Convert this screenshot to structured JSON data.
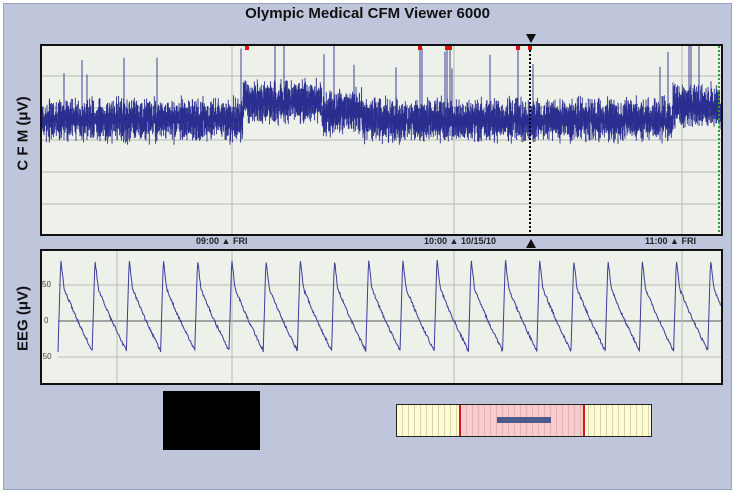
{
  "app": {
    "title": "Olympic Medical CFM Viewer 6000"
  },
  "cfm": {
    "ylabel": "C F M (μV)",
    "time_labels": [
      {
        "time": "09:00",
        "extra": "FRI"
      },
      {
        "time": "10:00",
        "extra": "10/15/10"
      },
      {
        "time": "11:00",
        "extra": "FRI"
      }
    ],
    "trace_color": "#2a2f8f",
    "marker_color": "#e01010"
  },
  "eeg": {
    "ylabel": "EEG (μV)",
    "ticks": [
      "50",
      "0",
      "-50"
    ],
    "trace_color": "#3a3f9a"
  },
  "colors": {
    "background": "#bfc6dc",
    "plot_bg": "#eef0ea",
    "grid": "#b8bcb4"
  }
}
